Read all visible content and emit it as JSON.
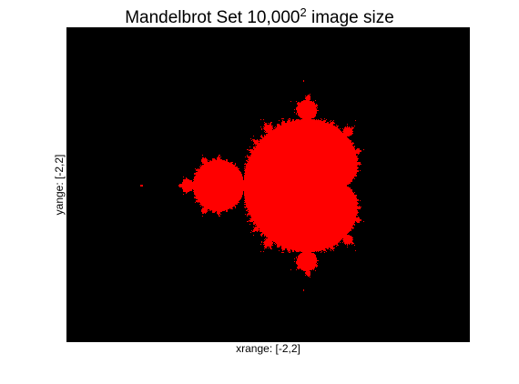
{
  "chart_data": {
    "type": "heatmap",
    "title": "Mandelbrot Set 10,000",
    "title_superscript": "2",
    "title_suffix": " image size",
    "xlabel": "xrange: [-2,2]",
    "ylabel": "yange: [-2,2]",
    "xlim": [
      -2.5,
      1.5
    ],
    "ylim": [
      -1.55,
      1.55
    ],
    "max_iterations": 60,
    "colors": {
      "in_set": "#ff0000",
      "outside": "#000000"
    }
  }
}
